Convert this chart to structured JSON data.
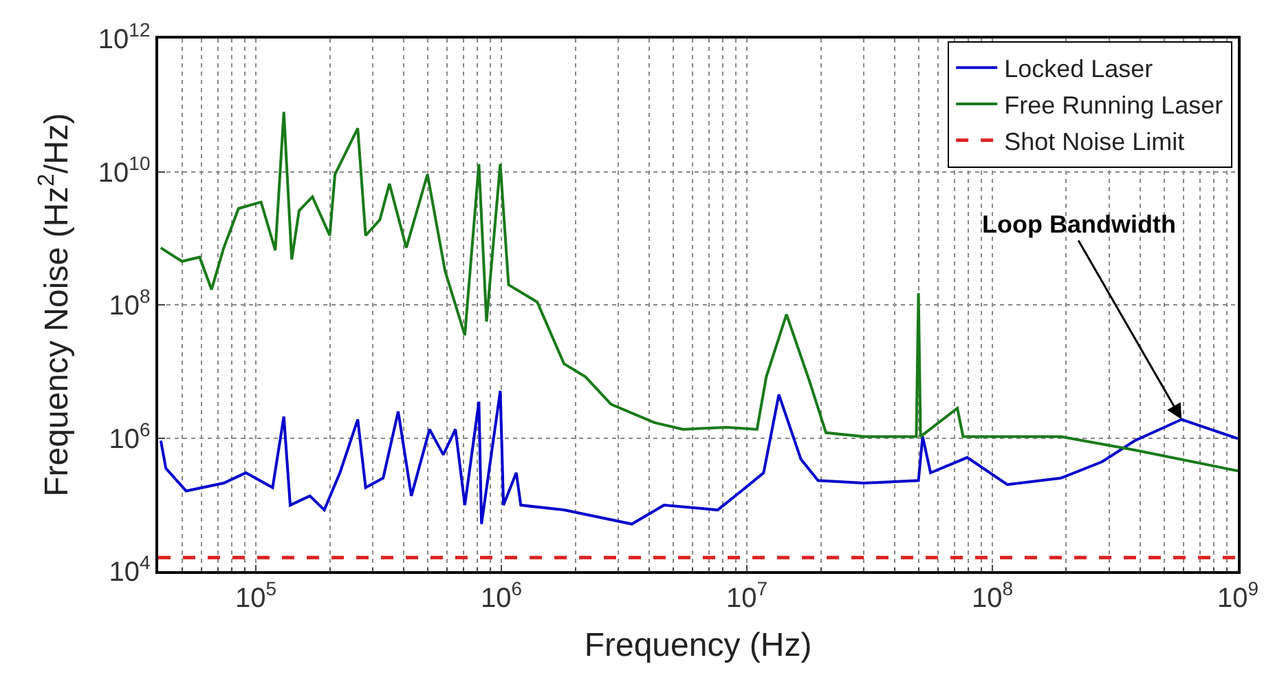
{
  "chart_data": {
    "type": "line",
    "xlabel": "Frequency (Hz)",
    "ylabel": "Frequency Noise (Hz$^{2}$/Hz)",
    "log": "xy",
    "grid": true,
    "legend": "top right",
    "line_style": "solid",
    "marker": "none",
    "xlim": [
      40000.0,
      1000000000.0
    ],
    "ylim": [
      10000.0,
      1000000000000.0
    ],
    "xticks": [
      {
        "value": 100000.0,
        "label": "10$^{5}$"
      },
      {
        "value": 1000000.0,
        "label": "10$^{6}$"
      },
      {
        "value": 10000000.0,
        "label": "10$^{7}$"
      },
      {
        "value": 100000000.0,
        "label": "10$^{8}$"
      },
      {
        "value": 1000000000.0,
        "label": "10$^{9}$"
      }
    ],
    "yticks": [
      {
        "value": 10000.0,
        "label": "10$^{4}$"
      },
      {
        "value": 1000000.0,
        "label": "10$^{6}$"
      },
      {
        "value": 100000000.0,
        "label": "10$^{8}$"
      },
      {
        "value": 10000000000.0,
        "label": "10$^{10}$"
      },
      {
        "value": 1000000000000.0,
        "label": "10$^{12}$"
      }
    ],
    "series": [
      {
        "name": "Locked Laser",
        "color": "#0000cc",
        "x": [
          41000.0,
          43000.0,
          52000.0,
          74000.0,
          91000.0,
          117000.0,
          130000.0,
          138000.0,
          166000.0,
          190000.0,
          220000.0,
          260000.0,
          280000.0,
          330000.0,
          380000.0,
          430000.0,
          510000.0,
          580000.0,
          650000.0,
          710000.0,
          810000.0,
          830000.0,
          990000.0,
          1020000.0,
          1150000.0,
          1200000.0,
          1800000.0,
          3400000.0,
          4600000.0,
          7600000.0,
          9500000.0,
          11700000.0,
          13500000.0,
          16600000.0,
          19500000.0,
          30000000.0,
          50000000.0,
          52000000.0,
          56000000.0,
          79000000.0,
          115000000.0,
          190000000.0,
          280000000.0,
          380000000.0,
          590000000.0,
          1000000000.0
        ],
        "values": [
          910000.0,
          350000.0,
          160000.0,
          210000.0,
          300000.0,
          180000.0,
          2100000.0,
          98000.0,
          135000.0,
          83000.0,
          300000.0,
          1900000.0,
          180000.0,
          250000.0,
          2500000.0,
          135000.0,
          1350000.0,
          560000.0,
          1350000.0,
          98000.0,
          3500000.0,
          51000.0,
          5100000.0,
          98000.0,
          300000.0,
          98000.0,
          83000.0,
          51000.0,
          98000.0,
          83000.0,
          160000.0,
          300000.0,
          4500000.0,
          480000.0,
          230000.0,
          210000.0,
          230000.0,
          1050000.0,
          300000.0,
          510000.0,
          200000.0,
          250000.0,
          440000.0,
          910000.0,
          1900000.0,
          980000.0
        ]
      },
      {
        "name": "Free Running Laser",
        "color": "#1a7a1a",
        "x": [
          41000.0,
          50000.0,
          59000.0,
          66000.0,
          74000.0,
          85000.0,
          105000.0,
          120000.0,
          130000.0,
          140000.0,
          150000.0,
          170000.0,
          200000.0,
          210000.0,
          260000.0,
          280000.0,
          320000.0,
          350000.0,
          410000.0,
          500000.0,
          590000.0,
          710000.0,
          810000.0,
          870000.0,
          990000.0,
          1070000.0,
          1400000.0,
          1800000.0,
          2200000.0,
          2800000.0,
          4200000.0,
          5500000.0,
          8300000.0,
          11000000.0,
          12000000.0,
          14500000.0,
          18000000.0,
          21000000.0,
          30000000.0,
          49000000.0,
          50000000.0,
          51000000.0,
          72000000.0,
          76000000.0,
          107000000.0,
          190000000.0,
          380000000.0,
          1000000000.0
        ],
        "values": [
          720000000.0,
          450000000.0,
          520000000.0,
          170000000.0,
          720000000.0,
          2800000000.0,
          3500000000.0,
          660000000.0,
          79000000000.0,
          480000000.0,
          2600000000.0,
          4200000000.0,
          1100000000.0,
          9100000000.0,
          45000000000.0,
          1100000000.0,
          1900000000.0,
          6600000000.0,
          720000000.0,
          9100000000.0,
          320000000.0,
          35000000.0,
          13000000000.0,
          56000000.0,
          13000000000.0,
          200000000.0,
          110000000.0,
          13000000.0,
          8300000.0,
          3200000.0,
          1700000.0,
          1350000.0,
          1450000.0,
          1350000.0,
          8300000.0,
          72000000.0,
          7100000.0,
          1200000.0,
          1050000.0,
          1050000.0,
          150000000.0,
          1050000.0,
          2800000.0,
          1050000.0,
          1050000.0,
          1050000.0,
          660000.0,
          320000.0
        ]
      },
      {
        "name": "Shot Noise Limit",
        "color": "#dd2222",
        "line_style": "dashed",
        "x": [
          40000.0,
          1000000000.0
        ],
        "values": [
          16000.0,
          16000.0
        ]
      }
    ],
    "annotations": [
      {
        "text": "Loop Bandwidth",
        "x": 590000000.0,
        "y": 1900000.0
      }
    ]
  }
}
